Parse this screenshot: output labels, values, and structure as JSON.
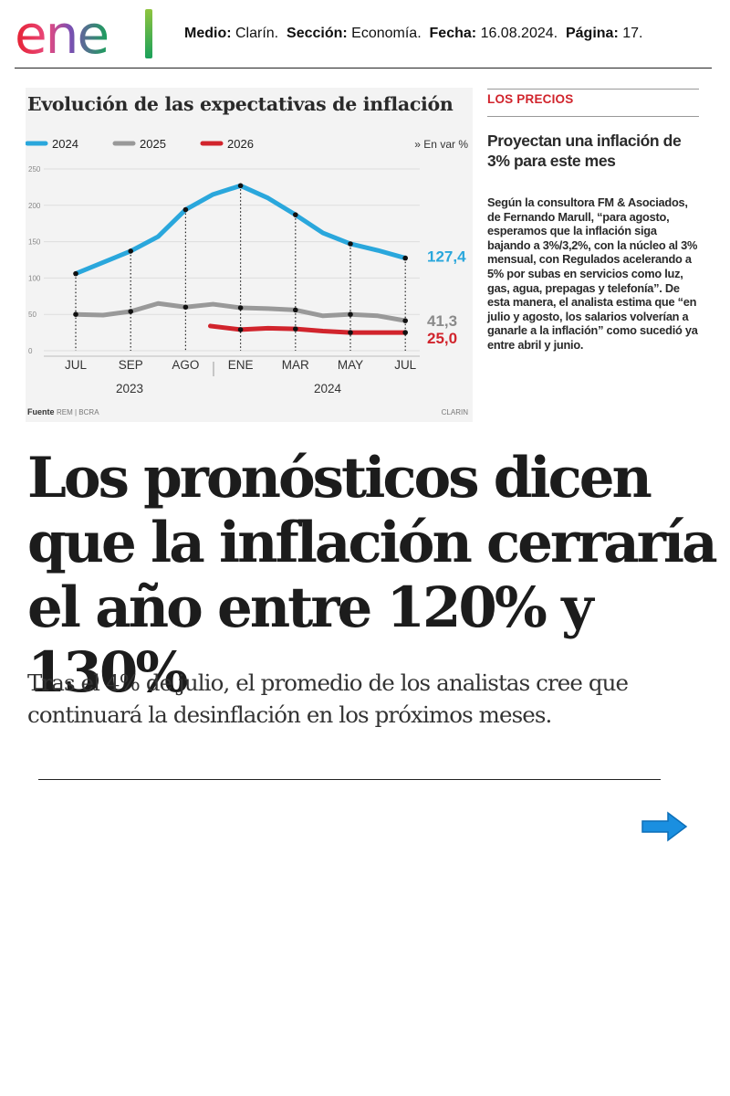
{
  "header": {
    "logo_text": "enel",
    "medio_label": "Medio:",
    "medio_value": "Clarín.",
    "seccion_label": "Sección:",
    "seccion_value": "Economía.",
    "fecha_label": "Fecha:",
    "fecha_value": "16.08.2024.",
    "pagina_label": "Página:",
    "pagina_value": "17."
  },
  "colors": {
    "series_2024": "#2aa7dc",
    "series_2025": "#999999",
    "series_2026": "#d1242c",
    "kicker": "#d1242c",
    "arrow": "#1a8fe0"
  },
  "chart_data": {
    "type": "line",
    "title": "Evolución de las expectativas de inflación",
    "unit_note": "» En var %",
    "legend_position": "top",
    "x_labels": [
      "JUL",
      "SEP",
      "AGO",
      "ENE",
      "MAR",
      "MAY",
      "JUL"
    ],
    "years": [
      "2023",
      "2024"
    ],
    "ylim": [
      0,
      250
    ],
    "y_ticks": [
      0,
      50,
      100,
      150,
      200,
      250
    ],
    "grid": true,
    "series": [
      {
        "name": "2024",
        "x": [
          0,
          1,
          1.5,
          2,
          2.5,
          3,
          3.5,
          4,
          4.5,
          5,
          5.5,
          6
        ],
        "values": [
          106,
          137,
          157,
          194,
          215,
          227,
          210,
          187,
          162,
          147,
          138,
          127.4
        ],
        "end_label": "127,4"
      },
      {
        "name": "2025",
        "x": [
          0,
          0.5,
          1,
          1.5,
          2,
          2.5,
          3,
          3.5,
          4,
          4.5,
          5,
          5.5,
          6
        ],
        "values": [
          50,
          49,
          54,
          65,
          60,
          64,
          59,
          58,
          56,
          48,
          50,
          48,
          41.3
        ],
        "end_label": "41,3"
      },
      {
        "name": "2026",
        "x": [
          2.45,
          3,
          3.5,
          4,
          4.5,
          5,
          5.5,
          6
        ],
        "values": [
          34,
          29,
          31,
          30,
          27,
          25,
          25,
          25.0
        ],
        "end_label": "25,0"
      }
    ],
    "marker_series_points": {
      "2024": [
        0,
        1,
        2,
        3,
        4,
        5,
        6
      ],
      "2025": [
        0,
        1,
        2,
        3,
        4,
        5,
        6
      ],
      "2026": [
        3,
        4,
        5,
        6
      ]
    },
    "source_label": "Fuente",
    "source_text": "REM | BCRA",
    "credit": "CLARIN"
  },
  "sidebar": {
    "kicker": "LOS PRECIOS",
    "title": "Proyectan una inflación de 3% para este mes",
    "body": "Según la consultora FM & Asociados, de Fernando Marull, “para agosto, esperamos que la inflación siga bajando a 3%/3,2%, con la núcleo al 3% mensual, con Regulados acelerando a 5% por subas en servicios como luz, gas, agua, prepagas y telefonía”. De esta manera, el analista estima que “en julio y agosto, los salarios volverían a ganarle a la inflación” como sucedió ya entre abril y junio."
  },
  "article": {
    "headline": "Los pronósticos dicen que la inflación cerraría el año entre 120% y 130%",
    "deck": "Tras el 4% de julio, el promedio de los analistas cree que continuará la desinflación en los próximos meses."
  },
  "navigation": {
    "next_icon": "arrow-right-icon"
  }
}
